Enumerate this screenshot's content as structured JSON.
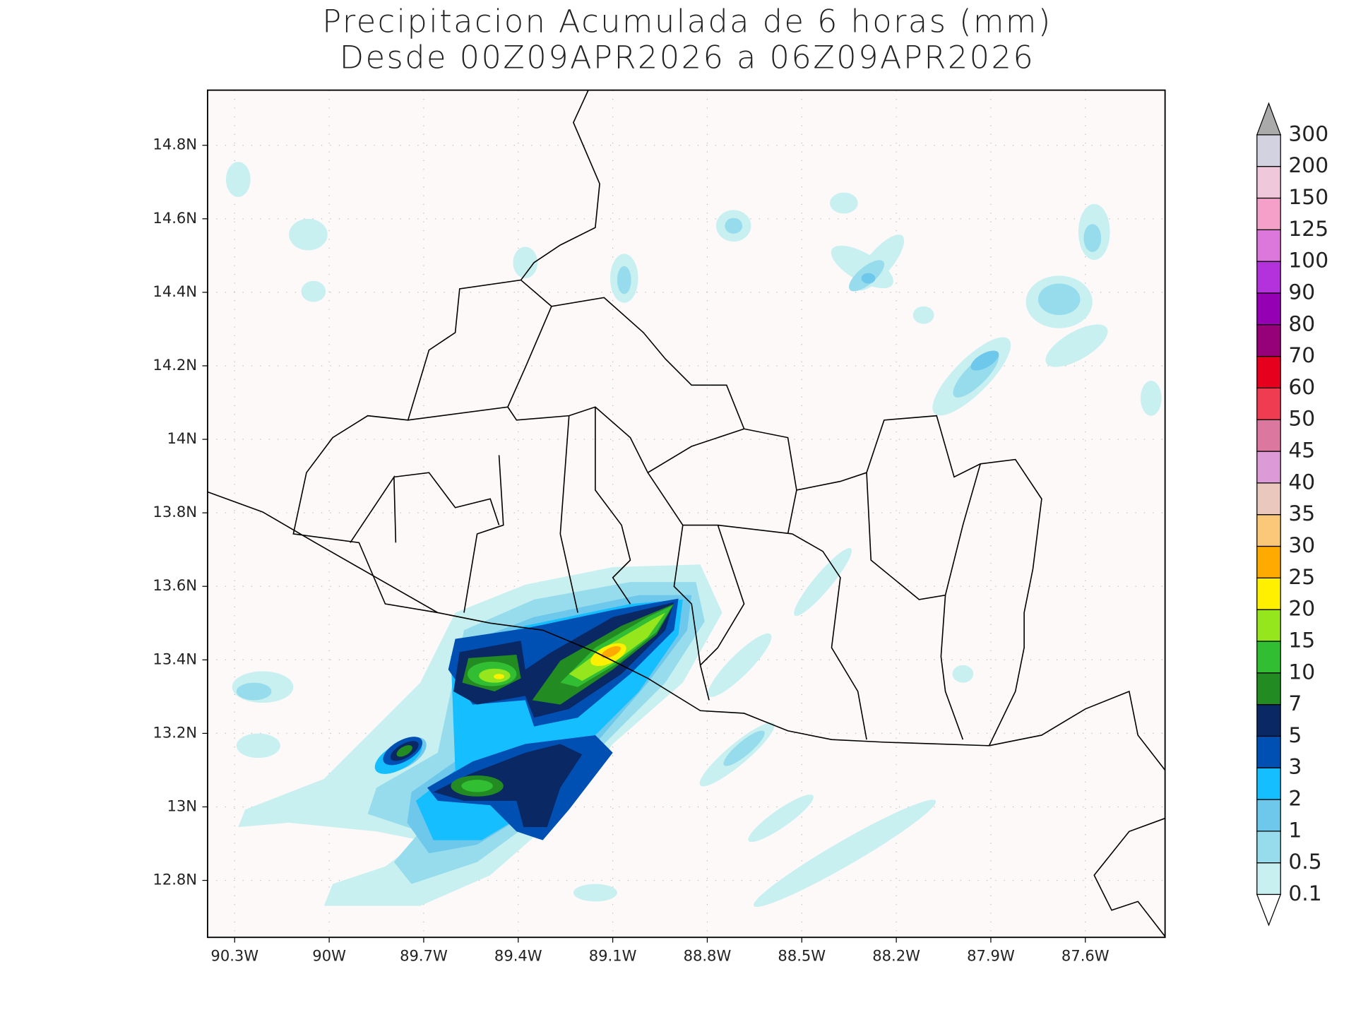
{
  "header": {
    "title": "Precipitacion Acumulada de 6 horas (mm)",
    "subtitle": "Desde 00Z09APR2026 a 06Z09APR2026"
  },
  "map": {
    "xlim": [
      -90.386,
      -87.347
    ],
    "ylim": [
      12.645,
      14.95
    ],
    "xticks": [
      {
        "value": -90.3,
        "label": "90.3W"
      },
      {
        "value": -90,
        "label": "90W"
      },
      {
        "value": -89.7,
        "label": "89.7W"
      },
      {
        "value": -89.4,
        "label": "89.4W"
      },
      {
        "value": -89.1,
        "label": "89.1W"
      },
      {
        "value": -88.8,
        "label": "88.8W"
      },
      {
        "value": -88.5,
        "label": "88.5W"
      },
      {
        "value": -88.2,
        "label": "88.2W"
      },
      {
        "value": -87.9,
        "label": "87.9W"
      },
      {
        "value": -87.6,
        "label": "87.6W"
      }
    ],
    "yticks": [
      {
        "value": 12.8,
        "label": "12.8N"
      },
      {
        "value": 13,
        "label": "13N"
      },
      {
        "value": 13.2,
        "label": "13.2N"
      },
      {
        "value": 13.4,
        "label": "13.4N"
      },
      {
        "value": 13.6,
        "label": "13.6N"
      },
      {
        "value": 13.8,
        "label": "13.8N"
      },
      {
        "value": 14,
        "label": "14N"
      },
      {
        "value": 14.2,
        "label": "14.2N"
      },
      {
        "value": 14.4,
        "label": "14.4N"
      },
      {
        "value": 14.6,
        "label": "14.6N"
      },
      {
        "value": 14.8,
        "label": "14.8N"
      }
    ],
    "grid": true
  },
  "colorbar": {
    "levels": [
      0.1,
      0.5,
      1,
      2,
      3,
      5,
      7,
      10,
      15,
      20,
      25,
      30,
      35,
      40,
      45,
      50,
      60,
      70,
      80,
      90,
      100,
      125,
      150,
      200,
      300
    ],
    "colors": [
      "#c8f0f0",
      "#96dcec",
      "#6ec8ec",
      "#14beff",
      "#0050b4",
      "#0a2864",
      "#228b22",
      "#32be32",
      "#96e61e",
      "#fff000",
      "#ffaa00",
      "#fac878",
      "#ebc8be",
      "#dc9bd7",
      "#dc78a0",
      "#f03c50",
      "#e6001e",
      "#960078",
      "#9600b4",
      "#b432dc",
      "#dc78dc",
      "#f5a0c8",
      "#f0c8dc",
      "#d2d2e1"
    ],
    "under_color": "#ffffff",
    "over_color": "#aaaaaa"
  }
}
